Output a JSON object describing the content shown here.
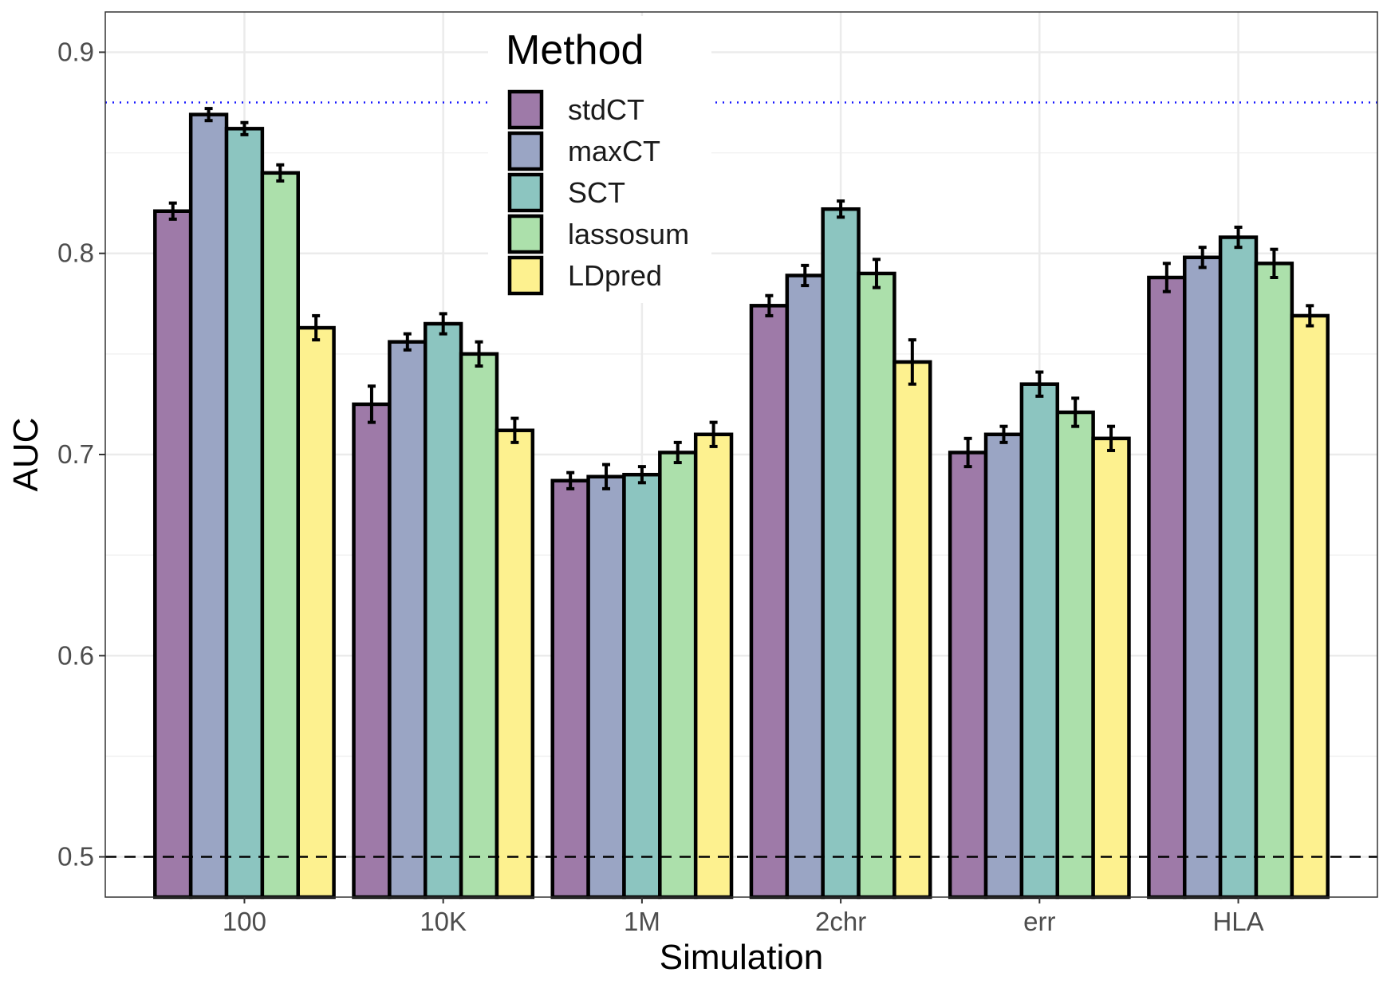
{
  "chart_data": {
    "type": "bar",
    "xlabel": "Simulation",
    "ylabel": "AUC",
    "ylim": [
      0.48,
      0.92
    ],
    "yticks": [
      "0.5",
      "0.6",
      "0.7",
      "0.8",
      "0.9"
    ],
    "grid": true,
    "categories": [
      "100",
      "10K",
      "1M",
      "2chr",
      "err",
      "HLA"
    ],
    "series": [
      {
        "name": "stdCT",
        "color": "#9e7aa8",
        "values": [
          0.821,
          0.725,
          0.687,
          0.774,
          0.701,
          0.788
        ],
        "errors": [
          0.004,
          0.009,
          0.004,
          0.005,
          0.007,
          0.007
        ]
      },
      {
        "name": "maxCT",
        "color": "#9aa5c4",
        "values": [
          0.869,
          0.756,
          0.689,
          0.789,
          0.71,
          0.798
        ],
        "errors": [
          0.003,
          0.004,
          0.006,
          0.005,
          0.004,
          0.005
        ]
      },
      {
        "name": "SCT",
        "color": "#8cc5c0",
        "values": [
          0.862,
          0.765,
          0.69,
          0.822,
          0.735,
          0.808
        ],
        "errors": [
          0.003,
          0.005,
          0.004,
          0.004,
          0.006,
          0.005
        ]
      },
      {
        "name": "lassosum",
        "color": "#ace0ab",
        "values": [
          0.84,
          0.75,
          0.701,
          0.79,
          0.721,
          0.795
        ],
        "errors": [
          0.004,
          0.006,
          0.005,
          0.007,
          0.007,
          0.007
        ]
      },
      {
        "name": "LDpred",
        "color": "#fdf18f",
        "values": [
          0.763,
          0.712,
          0.71,
          0.746,
          0.708,
          0.769
        ],
        "errors": [
          0.006,
          0.006,
          0.006,
          0.011,
          0.006,
          0.005
        ]
      }
    ],
    "reference_lines": [
      {
        "y": 0.875,
        "style": "dotted",
        "color": "#1a1aff"
      },
      {
        "y": 0.5,
        "style": "dashed",
        "color": "#000000"
      }
    ],
    "legend": {
      "title": "Method",
      "position": "top-center"
    }
  }
}
